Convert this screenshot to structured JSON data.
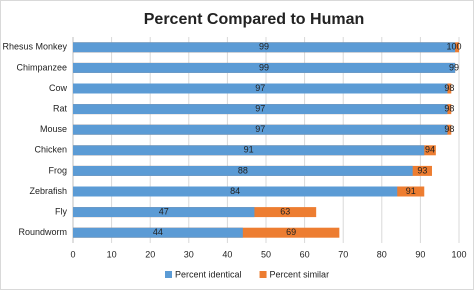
{
  "chart_data": {
    "type": "bar",
    "orientation": "horizontal",
    "title": "Percent Compared to Human",
    "categories": [
      "Rhesus Monkey",
      "Chimpanzee",
      "Cow",
      "Rat",
      "Mouse",
      "Chicken",
      "Frog",
      "Zebrafish",
      "Fly",
      "Roundworm"
    ],
    "series": [
      {
        "name": "Percent identical",
        "color": "#5b9bd5",
        "values": [
          99,
          99,
          97,
          97,
          97,
          91,
          88,
          84,
          47,
          44
        ]
      },
      {
        "name": "Percent similar",
        "color": "#ed7d31",
        "values": [
          100,
          99,
          98,
          98,
          98,
          94,
          93,
          91,
          63,
          69
        ]
      }
    ],
    "xlim": [
      0,
      100
    ],
    "xticks": [
      0,
      10,
      20,
      30,
      40,
      50,
      60,
      70,
      80,
      90,
      100
    ],
    "grid": true,
    "legend": "bottom"
  }
}
